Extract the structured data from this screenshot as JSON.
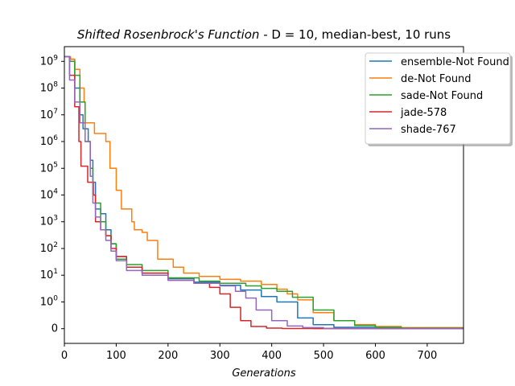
{
  "chart_data": {
    "type": "line",
    "title": {
      "function_name": "Shifted Rosenbrock's Function",
      "details": " - D = 10, median-best, 10 runs"
    },
    "xlabel": "Generations",
    "ylabel": "",
    "xlim": [
      0,
      770
    ],
    "x_ticks": [
      0,
      100,
      200,
      300,
      400,
      500,
      600,
      700
    ],
    "y_scale": "symlog",
    "y_ticks": [
      {
        "value": 0,
        "label": "0"
      },
      {
        "value": 1,
        "label": "10^0"
      },
      {
        "value": 10,
        "label": "10^1"
      },
      {
        "value": 100,
        "label": "10^2"
      },
      {
        "value": 1000,
        "label": "10^3"
      },
      {
        "value": 10000,
        "label": "10^4"
      },
      {
        "value": 100000,
        "label": "10^5"
      },
      {
        "value": 1000000,
        "label": "10^6"
      },
      {
        "value": 10000000,
        "label": "10^7"
      },
      {
        "value": 100000000,
        "label": "10^8"
      },
      {
        "value": 1000000000,
        "label": "10^9"
      }
    ],
    "legend_position": "top-right",
    "series": [
      {
        "name": "ensemble-Not Found",
        "color": "#1f77b4",
        "points": [
          [
            0,
            1500000000.0
          ],
          [
            10,
            1200000000.0
          ],
          [
            20,
            100000000.0
          ],
          [
            30,
            10000000.0
          ],
          [
            36,
            3000000.0
          ],
          [
            42,
            3000000.0
          ],
          [
            46,
            1000000.0
          ],
          [
            50,
            200000.0
          ],
          [
            55,
            30000.0
          ],
          [
            60,
            3000.0
          ],
          [
            70,
            2000.0
          ],
          [
            80,
            500.0
          ],
          [
            90,
            150.0
          ],
          [
            100,
            50
          ],
          [
            120,
            20
          ],
          [
            150,
            12
          ],
          [
            200,
            7.5
          ],
          [
            250,
            5.5
          ],
          [
            300,
            4.2
          ],
          [
            340,
            2.8
          ],
          [
            380,
            1.6
          ],
          [
            410,
            1.0
          ],
          [
            450,
            0.4
          ],
          [
            480,
            0.15
          ],
          [
            520,
            0.05
          ],
          [
            600,
            0.01
          ],
          [
            770,
            0.003
          ]
        ]
      },
      {
        "name": "de-Not Found",
        "color": "#ff7f0e",
        "points": [
          [
            0,
            1500000000.0
          ],
          [
            12,
            1200000000.0
          ],
          [
            20,
            500000000.0
          ],
          [
            30,
            100000000.0
          ],
          [
            38,
            30000000.0
          ],
          [
            40,
            5000000.0
          ],
          [
            55,
            5000000.0
          ],
          [
            58,
            2000000.0
          ],
          [
            70,
            2000000.0
          ],
          [
            80,
            1000000.0
          ],
          [
            88,
            100000.0
          ],
          [
            100,
            15000.0
          ],
          [
            110,
            3000.0
          ],
          [
            125,
            3000.0
          ],
          [
            130,
            1000.0
          ],
          [
            135,
            500.0
          ],
          [
            150,
            400.0
          ],
          [
            160,
            200.0
          ],
          [
            180,
            40
          ],
          [
            200,
            40
          ],
          [
            210,
            20
          ],
          [
            230,
            12
          ],
          [
            260,
            9
          ],
          [
            300,
            7
          ],
          [
            340,
            6
          ],
          [
            380,
            4.5
          ],
          [
            410,
            3
          ],
          [
            430,
            2
          ],
          [
            450,
            1.2
          ],
          [
            480,
            0.6
          ],
          [
            520,
            0.3
          ],
          [
            560,
            0.15
          ],
          [
            600,
            0.08
          ],
          [
            650,
            0.04
          ],
          [
            770,
            0.02
          ]
        ]
      },
      {
        "name": "sade-Not Found",
        "color": "#2ca02c",
        "points": [
          [
            0,
            1500000000.0
          ],
          [
            10,
            1000000000.0
          ],
          [
            20,
            300000000.0
          ],
          [
            30,
            30000000.0
          ],
          [
            40,
            1000000.0
          ],
          [
            50,
            100000.0
          ],
          [
            55,
            10000.0
          ],
          [
            60,
            5000.0
          ],
          [
            70,
            1000.0
          ],
          [
            80,
            300.0
          ],
          [
            90,
            150.0
          ],
          [
            100,
            40
          ],
          [
            120,
            25
          ],
          [
            150,
            15
          ],
          [
            200,
            8
          ],
          [
            260,
            6
          ],
          [
            300,
            5
          ],
          [
            350,
            4
          ],
          [
            380,
            3.2
          ],
          [
            410,
            2.5
          ],
          [
            440,
            1.5
          ],
          [
            480,
            0.7
          ],
          [
            520,
            0.3
          ],
          [
            560,
            0.12
          ],
          [
            600,
            0.05
          ],
          [
            650,
            0.02
          ],
          [
            770,
            0.01
          ]
        ]
      },
      {
        "name": "jade-578",
        "color": "#d62728",
        "points": [
          [
            0,
            1500000000.0
          ],
          [
            10,
            300000000.0
          ],
          [
            20,
            20000000.0
          ],
          [
            28,
            1000000.0
          ],
          [
            32,
            120000.0
          ],
          [
            40,
            120000.0
          ],
          [
            45,
            30000.0
          ],
          [
            52,
            30000.0
          ],
          [
            56,
            10000.0
          ],
          [
            60,
            1000.0
          ],
          [
            70,
            500.0
          ],
          [
            80,
            300.0
          ],
          [
            90,
            100.0
          ],
          [
            100,
            50
          ],
          [
            120,
            20
          ],
          [
            150,
            12
          ],
          [
            200,
            6.5
          ],
          [
            250,
            5
          ],
          [
            280,
            3.5
          ],
          [
            300,
            2
          ],
          [
            320,
            0.8
          ],
          [
            340,
            0.3
          ],
          [
            360,
            0.08
          ],
          [
            390,
            0.02
          ],
          [
            420,
            0.005
          ],
          [
            480,
            0.002
          ],
          [
            578,
            0.001
          ],
          [
            770,
            0.001
          ]
        ]
      },
      {
        "name": "shade-767",
        "color": "#9467bd",
        "points": [
          [
            0,
            1500000000.0
          ],
          [
            10,
            200000000.0
          ],
          [
            20,
            30000000.0
          ],
          [
            30,
            5000000.0
          ],
          [
            40,
            1000000.0
          ],
          [
            50,
            50000.0
          ],
          [
            55,
            5000.0
          ],
          [
            60,
            1500.0
          ],
          [
            70,
            500.0
          ],
          [
            80,
            200.0
          ],
          [
            90,
            80
          ],
          [
            100,
            35
          ],
          [
            120,
            15
          ],
          [
            150,
            10
          ],
          [
            200,
            6.5
          ],
          [
            250,
            5
          ],
          [
            300,
            4
          ],
          [
            330,
            2.5
          ],
          [
            350,
            1.4
          ],
          [
            370,
            0.7
          ],
          [
            400,
            0.3
          ],
          [
            430,
            0.1
          ],
          [
            460,
            0.04
          ],
          [
            500,
            0.015
          ],
          [
            550,
            0.006
          ],
          [
            650,
            0.002
          ],
          [
            767,
            0.001
          ],
          [
            770,
            0.001
          ]
        ]
      }
    ]
  }
}
